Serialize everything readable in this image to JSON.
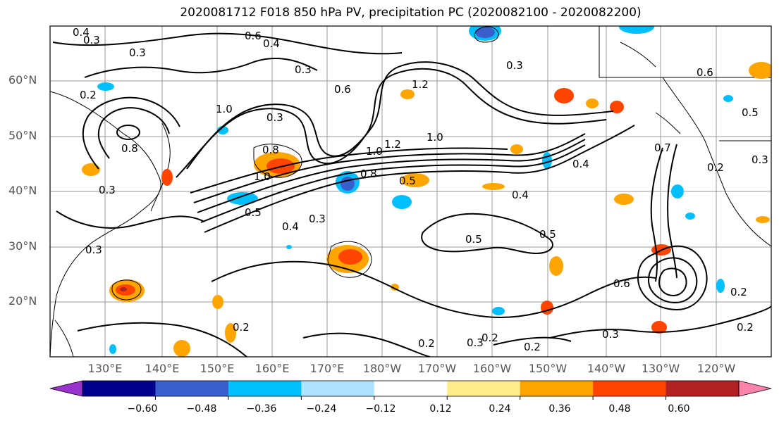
{
  "title": "2020081712 F018 850 hPa PV, precipitation PC (2020082100 - 2020082200)",
  "lat_labels": [
    "60°N",
    "50°N",
    "40°N",
    "30°N",
    "20°N"
  ],
  "lon_labels": [
    "130°E",
    "140°E",
    "150°E",
    "160°E",
    "170°E",
    "180°W",
    "170°W",
    "160°W",
    "150°W",
    "140°W",
    "130°W",
    "120°W"
  ],
  "colorbar": {
    "ticks": [
      "−0.60",
      "−0.48",
      "−0.36",
      "−0.24",
      "−0.12",
      "0.12",
      "0.24",
      "0.36",
      "0.48",
      "0.60"
    ],
    "colors": [
      "#9932cc",
      "#00008b",
      "#3a5fcd",
      "#00bfff",
      "#b0e2ff",
      "#ffffff",
      "#ffec8b",
      "#ffa500",
      "#ff4500",
      "#b22222",
      "#ff82ab"
    ]
  },
  "contour_labels": [
    {
      "text": "0.4"
    },
    {
      "text": "0.3"
    },
    {
      "text": "0.3"
    },
    {
      "text": "0.6"
    },
    {
      "text": "0.4"
    },
    {
      "text": "0.3"
    },
    {
      "text": "0.2"
    },
    {
      "text": "1.0"
    },
    {
      "text": "0.3"
    },
    {
      "text": "0.6"
    },
    {
      "text": "1.2"
    },
    {
      "text": "0.3"
    },
    {
      "text": "0.8"
    },
    {
      "text": "1.0"
    },
    {
      "text": "1.2"
    },
    {
      "text": "1.0"
    },
    {
      "text": "0.8"
    },
    {
      "text": "0.5"
    },
    {
      "text": "0.4"
    },
    {
      "text": "0.8"
    },
    {
      "text": "1.0"
    },
    {
      "text": "0.5"
    },
    {
      "text": "0.4"
    },
    {
      "text": "0.3"
    },
    {
      "text": "0.5"
    },
    {
      "text": "0.5"
    },
    {
      "text": "0.4"
    },
    {
      "text": "0.6"
    },
    {
      "text": "0.7"
    },
    {
      "text": "0.2"
    },
    {
      "text": "0.3"
    },
    {
      "text": "0.2"
    },
    {
      "text": "0.2"
    },
    {
      "text": "0.3"
    },
    {
      "text": "0.3"
    },
    {
      "text": "0.2"
    },
    {
      "text": "0.2"
    },
    {
      "text": "0.2"
    },
    {
      "text": "0.3"
    },
    {
      "text": "0.6"
    },
    {
      "text": "0.5"
    },
    {
      "text": "0.3"
    },
    {
      "text": "0.2"
    }
  ]
}
